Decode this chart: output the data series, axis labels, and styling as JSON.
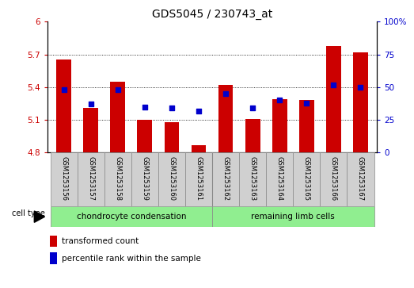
{
  "title": "GDS5045 / 230743_at",
  "samples": [
    "GSM1253156",
    "GSM1253157",
    "GSM1253158",
    "GSM1253159",
    "GSM1253160",
    "GSM1253161",
    "GSM1253162",
    "GSM1253163",
    "GSM1253164",
    "GSM1253165",
    "GSM1253166",
    "GSM1253167"
  ],
  "bar_values": [
    5.65,
    5.21,
    5.45,
    5.1,
    5.08,
    4.87,
    5.42,
    5.11,
    5.29,
    5.28,
    5.78,
    5.72
  ],
  "percentile_values": [
    48,
    37,
    48,
    35,
    34,
    32,
    45,
    34,
    40,
    38,
    52,
    50
  ],
  "ylim_left": [
    4.8,
    6.0
  ],
  "ylim_right": [
    0,
    100
  ],
  "yticks_left": [
    4.8,
    5.1,
    5.4,
    5.7,
    6.0
  ],
  "yticks_right": [
    0,
    25,
    50,
    75,
    100
  ],
  "ytick_labels_left": [
    "4.8",
    "5.1",
    "5.4",
    "5.7",
    "6"
  ],
  "ytick_labels_right": [
    "0",
    "25",
    "50",
    "75",
    "100%"
  ],
  "bar_color": "#cc0000",
  "percentile_color": "#0000cc",
  "group1_label": "chondrocyte condensation",
  "group2_label": "remaining limb cells",
  "group1_color": "#90ee90",
  "group2_color": "#90ee90",
  "cell_type_label": "cell type",
  "group1_count": 6,
  "group2_count": 6,
  "legend_bar_label": "transformed count",
  "legend_pct_label": "percentile rank within the sample",
  "bar_width": 0.55,
  "base_value": 4.8,
  "label_box_color": "#d0d0d0",
  "fig_bg": "#ffffff"
}
